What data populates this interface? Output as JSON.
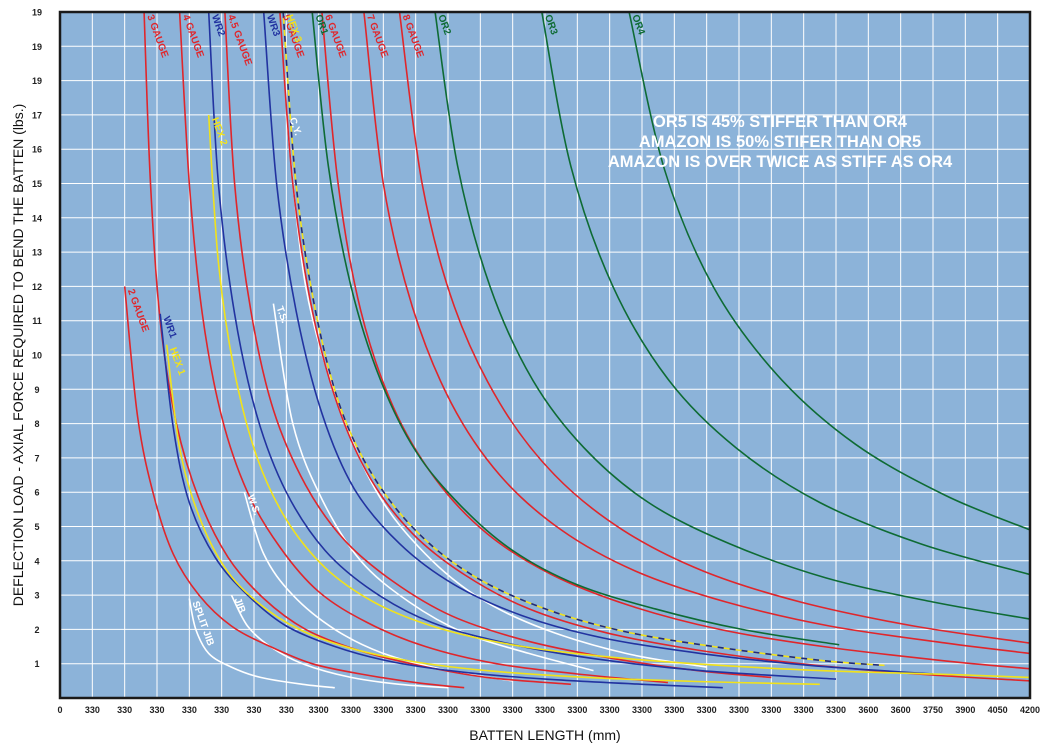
{
  "chart_data": {
    "type": "line",
    "xlabel": "BATTEN LENGTH (mm)",
    "ylabel": "DEFLECTION LOAD - AXIAL FORCE REQUIRED TO BEND THE BATTEN (lbs.)",
    "x_tick_labels": [
      "0",
      "330",
      "330",
      "330",
      "330",
      "330",
      "330",
      "330",
      "3300",
      "3300",
      "3300",
      "3300",
      "3300",
      "3300",
      "3300",
      "3300",
      "3300",
      "3300",
      "3300",
      "3300",
      "3300",
      "3300",
      "3300",
      "3300",
      "3300",
      "3600",
      "3600",
      "3750",
      "3900",
      "4050",
      "4200"
    ],
    "y_tick_labels": [
      "1",
      "2",
      "3",
      "4",
      "5",
      "6",
      "7",
      "8",
      "9",
      "10",
      "11",
      "12",
      "13",
      "14",
      "15",
      "16",
      "17",
      "19",
      "19",
      "19",
      "20"
    ],
    "x_range": [
      0,
      30
    ],
    "y_range": [
      0,
      20
    ],
    "grid": true,
    "background_color": "#8cb3d9",
    "annotations": [
      "OR5 IS 45% STIFFER THAN OR4",
      "AMAZON IS 50% STIFER THAN OR5",
      "AMAZON IS OVER TWICE AS STIFF AS OR4"
    ],
    "series": [
      {
        "name": "SPLIT JIB",
        "color": "#ffffff",
        "x": [
          4.0,
          4.2,
          4.6,
          5.3,
          6.2,
          7.5,
          8.5
        ],
        "y": [
          2.9,
          2.0,
          1.3,
          0.9,
          0.6,
          0.4,
          0.3
        ]
      },
      {
        "name": "JIB",
        "color": "#ffffff",
        "x": [
          5.3,
          5.8,
          6.5,
          7.5,
          9.0,
          10.5,
          12.0
        ],
        "y": [
          3.0,
          2.1,
          1.5,
          1.0,
          0.6,
          0.4,
          0.3
        ]
      },
      {
        "name": "W.S.",
        "color": "#ffffff",
        "x": [
          5.7,
          6.3,
          7.2,
          8.5,
          10.0,
          12.0,
          14.0
        ],
        "y": [
          6.0,
          4.2,
          3.0,
          2.0,
          1.3,
          0.8,
          0.5
        ]
      },
      {
        "name": "T.S.",
        "color": "#ffffff",
        "x": [
          6.6,
          7.2,
          8.1,
          9.3,
          10.8,
          12.5,
          14.5,
          16.5
        ],
        "y": [
          11.5,
          8.0,
          5.8,
          4.0,
          2.8,
          1.9,
          1.3,
          0.8
        ]
      },
      {
        "name": "C.Y.",
        "color": "#ffffff",
        "x": [
          7.0,
          7.6,
          8.6,
          9.8,
          11.3,
          13.0,
          15.0,
          17.5,
          20.0
        ],
        "y": [
          17.0,
          12.0,
          8.6,
          6.0,
          4.2,
          2.9,
          2.0,
          1.3,
          0.9
        ]
      },
      {
        "name": "2 GAUGE",
        "color": "#e0262b",
        "x": [
          2.0,
          2.4,
          2.9,
          3.5,
          4.3,
          5.3,
          6.5,
          7.8,
          9.3,
          11.0,
          12.5
        ],
        "y": [
          12.0,
          8.2,
          5.9,
          4.2,
          3.0,
          2.1,
          1.5,
          1.0,
          0.7,
          0.45,
          0.3
        ]
      },
      {
        "name": "3 GAUGE",
        "color": "#e0262b",
        "x": [
          2.6,
          2.8,
          3.1,
          3.6,
          4.3,
          5.2,
          6.3,
          7.6,
          9.2,
          11.1,
          13.2,
          15.8
        ],
        "y": [
          20.0,
          15.0,
          11.0,
          8.0,
          5.8,
          4.1,
          2.9,
          2.0,
          1.4,
          0.95,
          0.6,
          0.4
        ]
      },
      {
        "name": "4 GAUGE",
        "color": "#e0262b",
        "x": [
          3.7,
          4.0,
          4.4,
          5.0,
          5.8,
          6.8,
          8.0,
          9.5,
          11.3,
          13.5,
          16.0,
          18.8
        ],
        "y": [
          20.0,
          15.0,
          11.2,
          8.2,
          6.0,
          4.4,
          3.1,
          2.2,
          1.5,
          1.0,
          0.7,
          0.45
        ]
      },
      {
        "name": "4.5 GAUGE",
        "color": "#e0262b",
        "x": [
          5.1,
          5.4,
          5.9,
          6.6,
          7.6,
          8.8,
          10.3,
          12.1,
          14.3,
          16.8,
          19.7,
          22.0
        ],
        "y": [
          20.0,
          15.0,
          11.3,
          8.4,
          6.2,
          4.6,
          3.4,
          2.4,
          1.7,
          1.2,
          0.8,
          0.6
        ]
      },
      {
        "name": "5 GAUGE",
        "color": "#e0262b",
        "x": [
          6.8,
          7.2,
          7.8,
          8.6,
          9.6,
          10.9,
          12.5,
          14.5,
          16.9,
          19.7,
          22.9,
          26.5,
          30.0
        ],
        "y": [
          20.0,
          15.0,
          11.3,
          8.5,
          6.4,
          4.8,
          3.6,
          2.6,
          1.9,
          1.4,
          1.0,
          0.7,
          0.5
        ]
      },
      {
        "name": "6 GAUGE",
        "color": "#e0262b",
        "x": [
          8.1,
          8.6,
          9.3,
          10.3,
          11.6,
          13.2,
          15.2,
          17.6,
          20.4,
          23.6,
          27.2,
          30.0
        ],
        "y": [
          20.0,
          15.0,
          11.3,
          8.5,
          6.4,
          4.8,
          3.6,
          2.7,
          2.0,
          1.5,
          1.1,
          0.85
        ]
      },
      {
        "name": "7 GAUGE",
        "color": "#e0262b",
        "x": [
          9.4,
          10.0,
          10.9,
          12.1,
          13.6,
          15.5,
          17.8,
          20.6,
          23.8,
          27.4,
          30.0
        ],
        "y": [
          20.0,
          15.0,
          11.4,
          8.6,
          6.5,
          4.9,
          3.7,
          2.8,
          2.1,
          1.6,
          1.3
        ]
      },
      {
        "name": "8 GAUGE",
        "color": "#e0262b",
        "x": [
          10.5,
          11.2,
          12.2,
          13.6,
          15.3,
          17.4,
          19.9,
          22.9,
          26.4,
          30.0
        ],
        "y": [
          20.0,
          15.0,
          11.4,
          8.6,
          6.5,
          4.9,
          3.7,
          2.8,
          2.1,
          1.6
        ]
      },
      {
        "name": "OR1",
        "color": "#0e6b34",
        "x": [
          7.8,
          8.3,
          9.0,
          9.9,
          11.0,
          12.4,
          14.0,
          16.0,
          18.4,
          21.1,
          24.1
        ],
        "y": [
          20.0,
          15.5,
          12.0,
          9.3,
          7.2,
          5.6,
          4.3,
          3.3,
          2.6,
          2.0,
          1.55
        ]
      },
      {
        "name": "OR2",
        "color": "#0e6b34",
        "x": [
          11.6,
          12.3,
          13.3,
          14.6,
          16.2,
          18.2,
          20.7,
          23.7,
          27.0,
          30.0
        ],
        "y": [
          20.0,
          15.5,
          12.0,
          9.3,
          7.3,
          5.7,
          4.5,
          3.5,
          2.8,
          2.3
        ]
      },
      {
        "name": "OR3",
        "color": "#0e6b34",
        "x": [
          14.9,
          15.8,
          17.1,
          18.8,
          20.9,
          23.5,
          26.6,
          30.0
        ],
        "y": [
          20.0,
          15.5,
          12.0,
          9.3,
          7.3,
          5.7,
          4.5,
          3.6
        ]
      },
      {
        "name": "OR4",
        "color": "#0e6b34",
        "x": [
          17.6,
          18.7,
          20.2,
          22.2,
          24.6,
          27.4,
          30.0
        ],
        "y": [
          20.0,
          15.4,
          12.0,
          9.4,
          7.4,
          5.9,
          4.9
        ]
      },
      {
        "name": "WR1",
        "color": "#2233a0",
        "x": [
          3.1,
          3.5,
          4.0,
          4.8,
          5.8,
          7.0,
          8.5,
          10.3,
          12.5,
          15.0,
          18.0,
          20.5
        ],
        "y": [
          11.2,
          7.9,
          5.7,
          4.1,
          3.0,
          2.1,
          1.5,
          1.05,
          0.75,
          0.55,
          0.4,
          0.3
        ]
      },
      {
        "name": "WR2",
        "color": "#2233a0",
        "x": [
          4.6,
          4.9,
          5.4,
          6.1,
          7.0,
          8.2,
          9.7,
          11.5,
          13.8,
          16.5,
          19.8,
          24.0
        ],
        "y": [
          20.0,
          15.0,
          11.2,
          8.2,
          6.0,
          4.3,
          3.1,
          2.2,
          1.6,
          1.15,
          0.8,
          0.55
        ]
      },
      {
        "name": "WR3",
        "color": "#2233a0",
        "x": [
          6.3,
          6.7,
          7.3,
          8.1,
          9.1,
          10.5,
          12.2,
          14.3,
          16.8,
          19.8,
          23.2,
          27.0
        ],
        "y": [
          20.0,
          15.0,
          11.3,
          8.3,
          6.1,
          4.5,
          3.3,
          2.4,
          1.75,
          1.3,
          0.95,
          0.7
        ]
      },
      {
        "name": "HEX 1",
        "color": "#f1e21b",
        "x": [
          3.3,
          3.7,
          4.3,
          5.1,
          6.1,
          7.4,
          9.0,
          11.0,
          13.4,
          16.3,
          19.7,
          23.5
        ],
        "y": [
          10.3,
          7.3,
          5.3,
          3.8,
          2.8,
          2.0,
          1.45,
          1.05,
          0.78,
          0.6,
          0.48,
          0.4
        ]
      },
      {
        "name": "HEX 2",
        "color": "#f1e21b",
        "x": [
          4.6,
          4.9,
          5.4,
          6.1,
          7.0,
          8.2,
          9.7,
          11.5,
          13.7,
          16.4,
          19.6,
          23.5,
          27.0,
          30.0
        ],
        "y": [
          17.0,
          12.7,
          9.5,
          7.0,
          5.2,
          3.8,
          2.8,
          2.1,
          1.6,
          1.25,
          1.0,
          0.8,
          0.7,
          0.6
        ]
      },
      {
        "name": "HEX 3",
        "color": "#f1e21b",
        "dashed": true,
        "x": [
          6.9,
          7.3,
          7.9,
          8.7,
          9.8,
          11.2,
          12.9,
          15.0,
          17.4,
          20.2,
          23.5,
          25.5
        ],
        "y": [
          20.0,
          15.0,
          11.3,
          8.4,
          6.3,
          4.7,
          3.5,
          2.6,
          1.95,
          1.5,
          1.1,
          0.95
        ]
      }
    ]
  }
}
